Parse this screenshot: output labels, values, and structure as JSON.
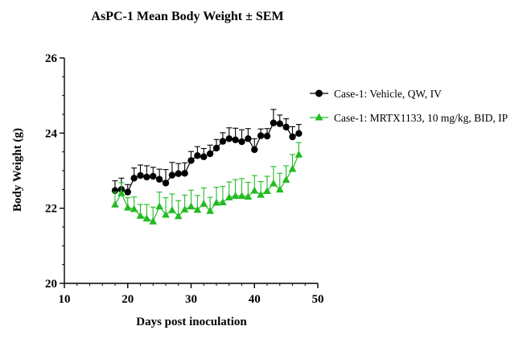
{
  "chart_data": {
    "type": "line",
    "title": "AsPC-1 Mean Body Weight ± SEM",
    "xlabel": "Days post inoculation",
    "ylabel": "Body Weight (g)",
    "xlim": [
      10,
      50
    ],
    "ylim": [
      20,
      26
    ],
    "xticks": [
      10,
      20,
      30,
      40,
      50
    ],
    "yticks": [
      20,
      22,
      24,
      26
    ],
    "grid": false,
    "legend_position": "right",
    "error_bars": "SEM (upper)",
    "series": [
      {
        "name": "Case-1: Vehicle, QW, IV",
        "color": "#000000",
        "marker": "circle",
        "x": [
          18,
          19,
          20,
          21,
          22,
          23,
          24,
          25,
          26,
          27,
          28,
          29,
          30,
          31,
          32,
          33,
          34,
          35,
          36,
          37,
          38,
          39,
          40,
          41,
          42,
          43,
          44,
          45,
          46,
          47
        ],
        "values": [
          22.47,
          22.5,
          22.43,
          22.8,
          22.87,
          22.83,
          22.85,
          22.77,
          22.67,
          22.88,
          22.92,
          22.93,
          23.27,
          23.4,
          23.37,
          23.45,
          23.6,
          23.78,
          23.85,
          23.82,
          23.77,
          23.85,
          23.56,
          23.93,
          23.92,
          24.27,
          24.25,
          24.16,
          23.9,
          23.99
        ],
        "sem": [
          0.26,
          0.3,
          0.2,
          0.27,
          0.28,
          0.3,
          0.24,
          0.27,
          0.36,
          0.34,
          0.27,
          0.28,
          0.24,
          0.24,
          0.22,
          0.23,
          0.23,
          0.23,
          0.29,
          0.31,
          0.32,
          0.27,
          0.29,
          0.18,
          0.2,
          0.36,
          0.23,
          0.22,
          0.27,
          0.24
        ]
      },
      {
        "name": "Case-1: MRTX1133, 10 mg/kg, BID, IP",
        "color": "#22bb22",
        "marker": "triangle",
        "x": [
          18,
          19,
          20,
          21,
          22,
          23,
          24,
          25,
          26,
          27,
          28,
          29,
          30,
          31,
          32,
          33,
          34,
          35,
          36,
          37,
          38,
          39,
          40,
          41,
          42,
          43,
          44,
          45,
          46,
          47
        ],
        "values": [
          22.1,
          22.4,
          22.02,
          21.98,
          21.8,
          21.73,
          21.65,
          22.05,
          21.83,
          21.95,
          21.79,
          21.97,
          22.05,
          21.96,
          22.12,
          21.93,
          22.15,
          22.16,
          22.29,
          22.33,
          22.33,
          22.31,
          22.47,
          22.36,
          22.46,
          22.66,
          22.5,
          22.76,
          23.05,
          23.43
        ],
        "sem": [
          0.33,
          0.28,
          0.26,
          0.32,
          0.3,
          0.37,
          0.38,
          0.38,
          0.45,
          0.43,
          0.41,
          0.38,
          0.43,
          0.38,
          0.42,
          0.36,
          0.41,
          0.42,
          0.41,
          0.43,
          0.46,
          0.38,
          0.4,
          0.35,
          0.39,
          0.45,
          0.43,
          0.37,
          0.38,
          0.32
        ]
      }
    ]
  }
}
